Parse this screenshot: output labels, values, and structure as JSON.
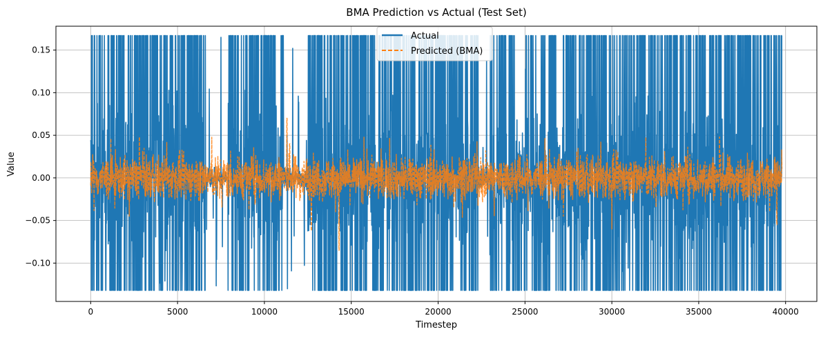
{
  "chart_data": {
    "type": "line",
    "title": "BMA Prediction vs Actual (Test Set)",
    "xlabel": "Timestep",
    "ylabel": "Value",
    "xlim": [
      -2000,
      41800
    ],
    "ylim": [
      -0.145,
      0.178
    ],
    "x_ticks": [
      0,
      5000,
      10000,
      15000,
      20000,
      25000,
      30000,
      35000,
      40000
    ],
    "x_tick_labels": [
      "0",
      "5000",
      "10000",
      "15000",
      "20000",
      "25000",
      "30000",
      "35000",
      "40000"
    ],
    "y_ticks": [
      -0.1,
      -0.05,
      0.0,
      0.05,
      0.1,
      0.15
    ],
    "y_tick_labels": [
      "−0.10",
      "−0.05",
      "0.00",
      "0.05",
      "0.10",
      "0.15"
    ],
    "grid": true,
    "legend": {
      "placement": "top-center"
    },
    "series": [
      {
        "name": "Actual",
        "color": "#1f77b4",
        "style": "solid",
        "n_points": 39800,
        "value_range": [
          -0.132,
          0.167
        ],
        "active_segments": [
          [
            0,
            6600
          ],
          [
            7900,
            11100
          ],
          [
            12500,
            22300
          ],
          [
            23000,
            39800
          ]
        ],
        "sparse_segments": [
          [
            6600,
            7900
          ],
          [
            11100,
            12500
          ],
          [
            22300,
            23000
          ]
        ]
      },
      {
        "name": "Predicted (BMA)",
        "color": "#ff7f0e",
        "style": "dashed",
        "n_points": 39800,
        "typical_range": [
          -0.035,
          0.035
        ],
        "peak_values": [
          {
            "x": 11300,
            "y": 0.07
          },
          {
            "x": 11450,
            "y": 0.04
          },
          {
            "x": 2800,
            "y": 0.048
          },
          {
            "x": 14300,
            "y": -0.085
          },
          {
            "x": 12700,
            "y": -0.062
          },
          {
            "x": 30000,
            "y": -0.06
          },
          {
            "x": 36200,
            "y": 0.048
          },
          {
            "x": 39500,
            "y": -0.055
          }
        ]
      }
    ]
  }
}
